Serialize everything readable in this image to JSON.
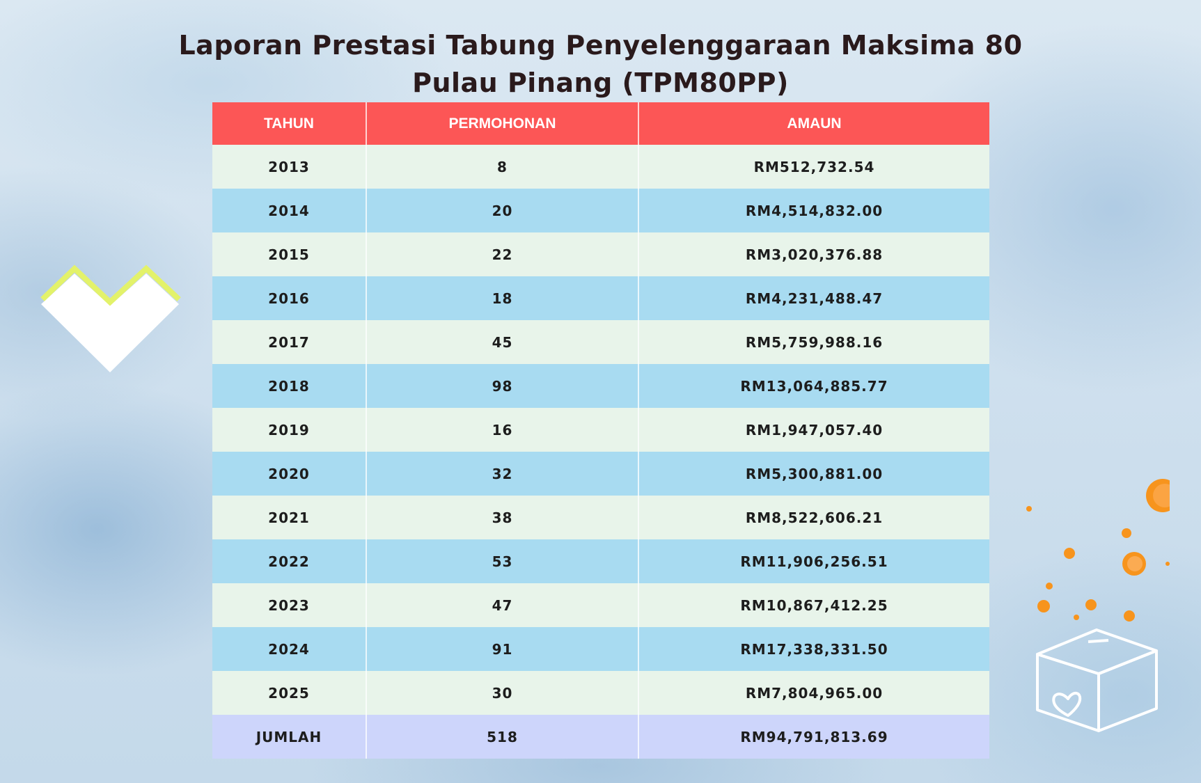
{
  "title": {
    "line1": "Laporan Prestasi Tabung Penyelenggaraan Maksima 80",
    "line2": "Pulau Pinang (TPM80PP)"
  },
  "table": {
    "headers": [
      "TAHUN",
      "PERMOHONAN",
      "AMAUN"
    ],
    "rows": [
      [
        "2013",
        "8",
        "RM512,732.54"
      ],
      [
        "2014",
        "20",
        "RM4,514,832.00"
      ],
      [
        "2015",
        "22",
        "RM3,020,376.88"
      ],
      [
        "2016",
        "18",
        "RM4,231,488.47"
      ],
      [
        "2017",
        "45",
        "RM5,759,988.16"
      ],
      [
        "2018",
        "98",
        "RM13,064,885.77"
      ],
      [
        "2019",
        "16",
        "RM1,947,057.40"
      ],
      [
        "2020",
        "32",
        "RM5,300,881.00"
      ],
      [
        "2021",
        "38",
        "RM8,522,606.21"
      ],
      [
        "2022",
        "53",
        "RM11,906,256.51"
      ],
      [
        "2023",
        "47",
        "RM10,867,412.25"
      ],
      [
        "2024",
        "91",
        "RM17,338,331.50"
      ],
      [
        "2025",
        "30",
        "RM7,804,965.00"
      ]
    ],
    "total": [
      "JUMLAH",
      "518",
      "RM94,791,813.69"
    ]
  },
  "colors": {
    "header": "#fc5656",
    "row_light": "#e8f4ea",
    "row_blue": "#a8dbf1",
    "row_total": "#cdd5fb",
    "accent_coin": "#f7941d",
    "accent_zigzag": "#e3f26a"
  },
  "icons": [
    "heart-shape-icon",
    "coins-icon",
    "donation-box-icon"
  ]
}
